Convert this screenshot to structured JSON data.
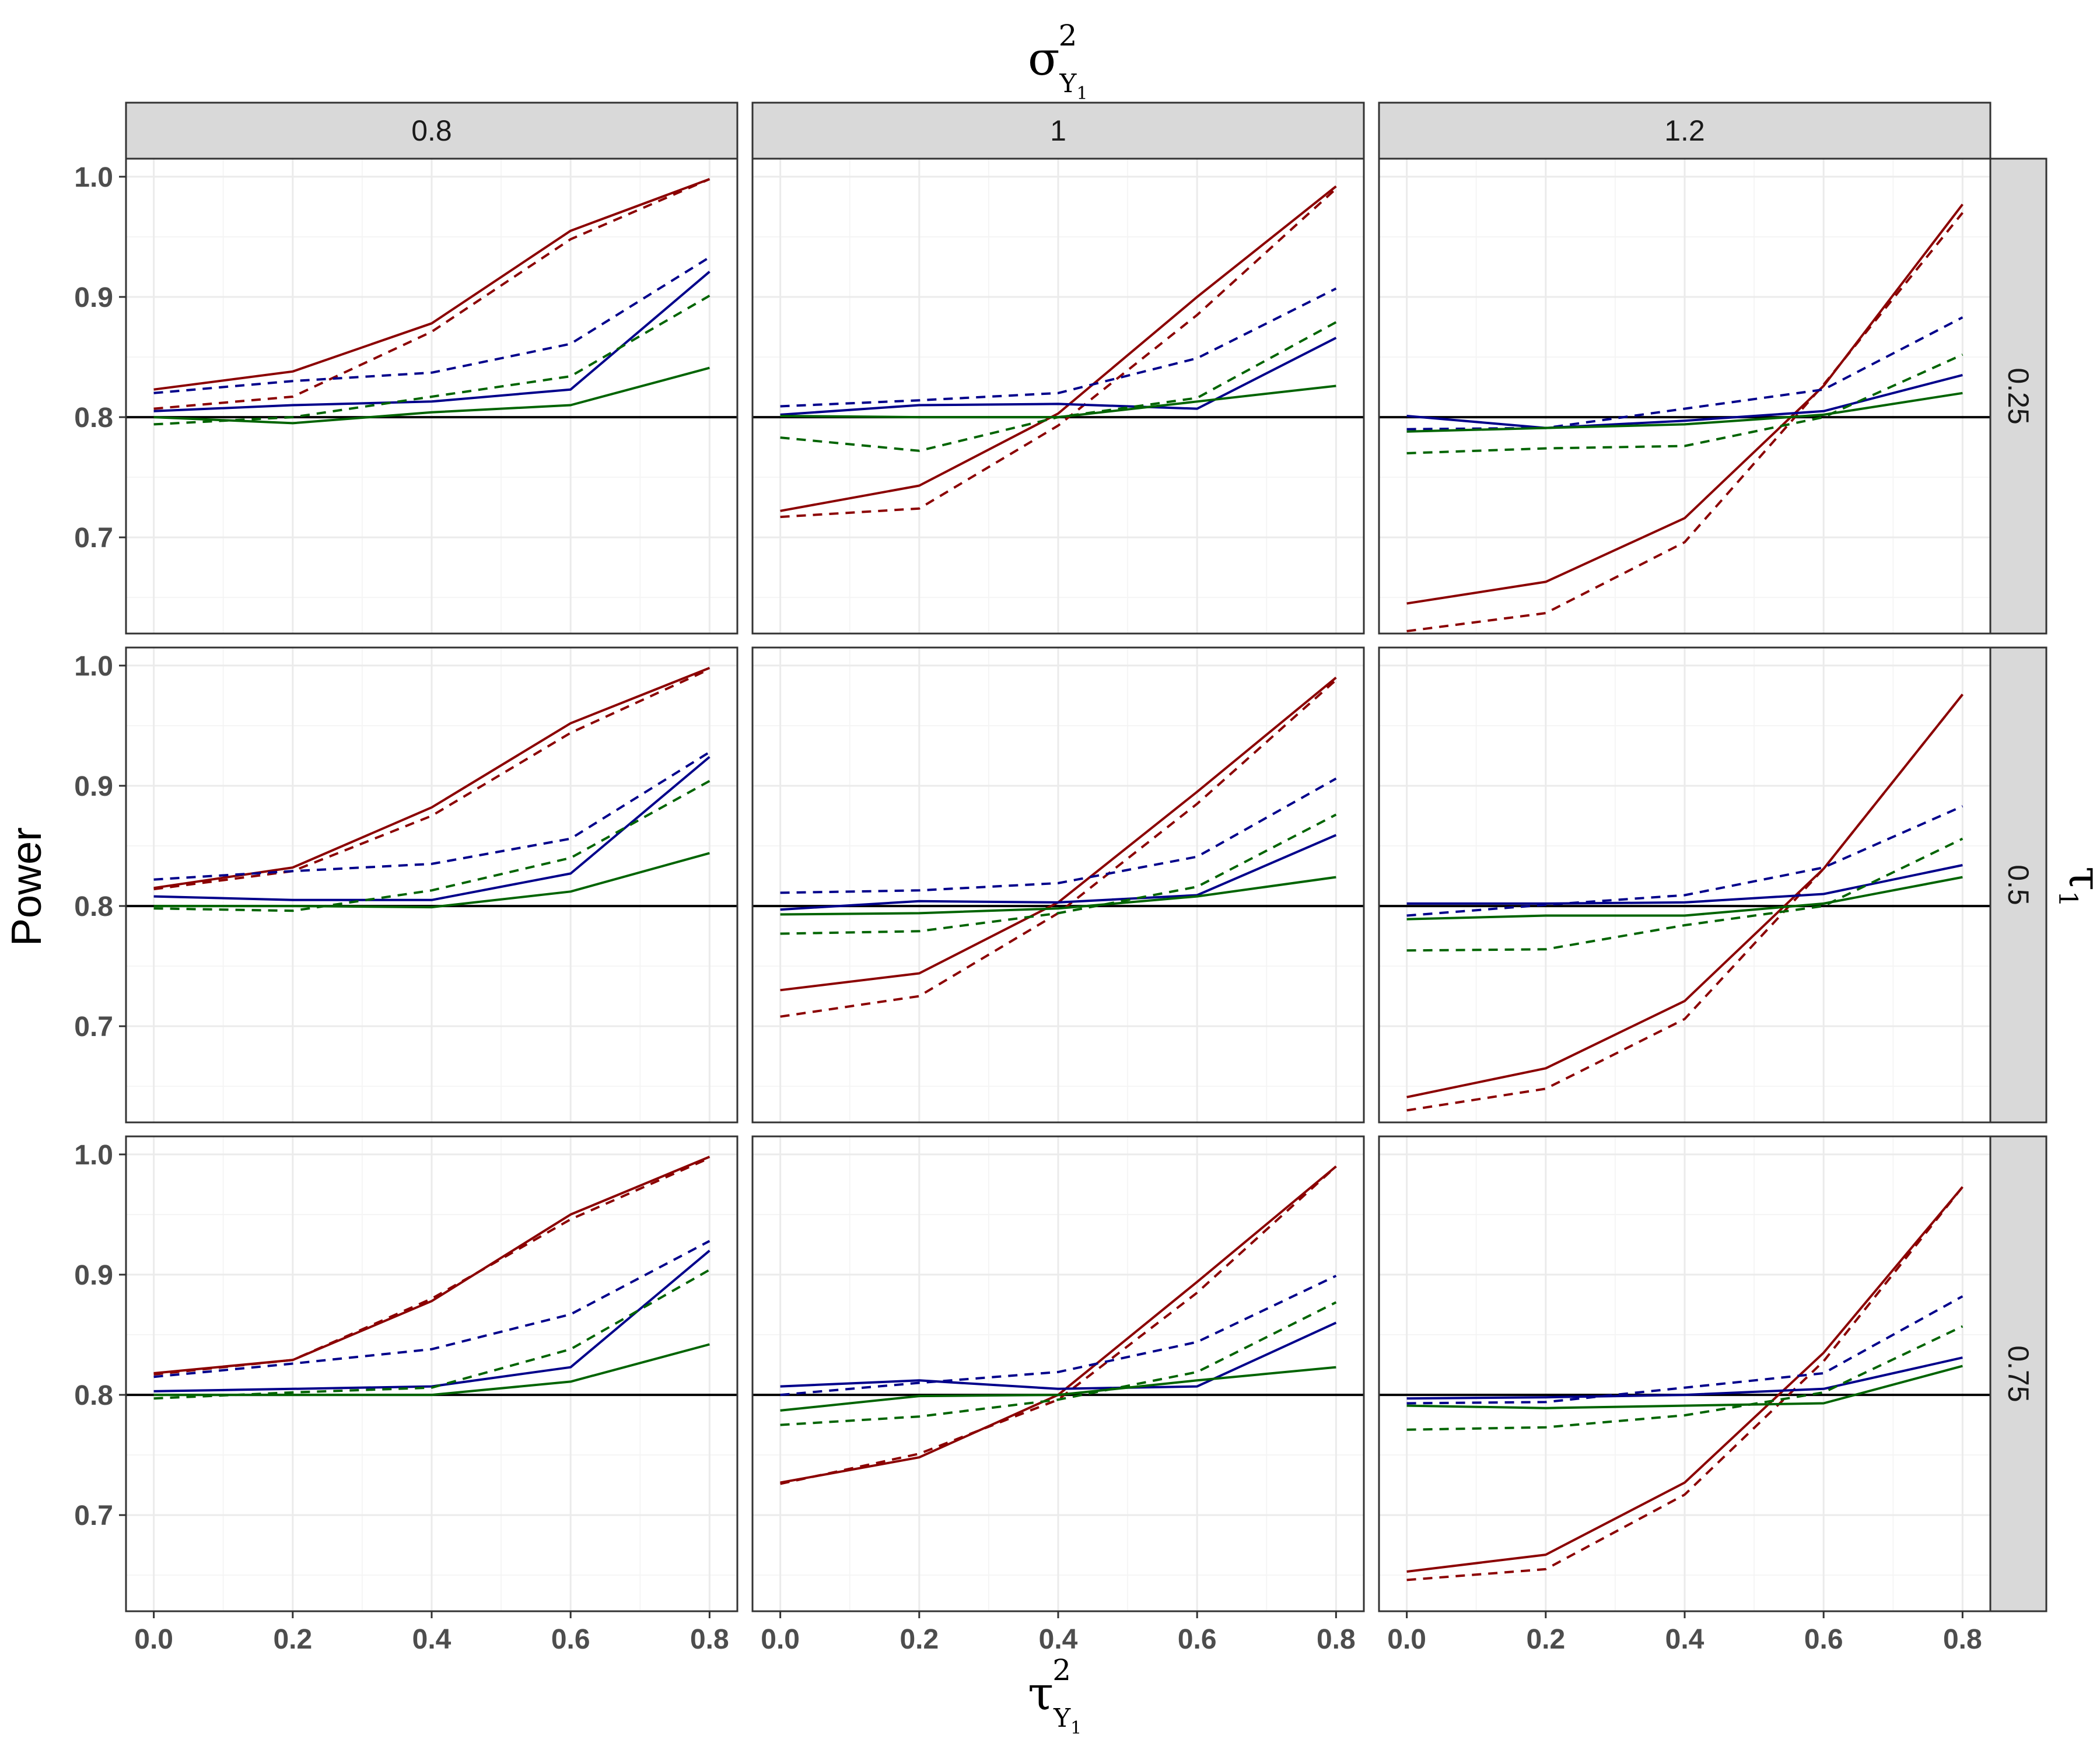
{
  "chart_data": {
    "type": "line",
    "facet_col_title": "σ",
    "facet_row_title": "τ",
    "xlabel_base": "τ",
    "ylabel": "Power",
    "col_title_sup": "2",
    "col_title_sub": "Y",
    "col_title_subsub": "1",
    "row_title_sub": "1",
    "xlabel_sup": "2",
    "xlabel_sub": "Y",
    "xlabel_subsub": "1",
    "col_levels": [
      "0.8",
      "1",
      "1.2"
    ],
    "row_levels": [
      "0.25",
      "0.5",
      "0.75"
    ],
    "x": [
      0.0,
      0.2,
      0.4,
      0.6,
      0.8
    ],
    "x_ticks": [
      "0.0",
      "0.2",
      "0.4",
      "0.6",
      "0.8"
    ],
    "y_ticks": [
      "0.7",
      "0.8",
      "0.9",
      "1.0"
    ],
    "xlim": [
      -0.04,
      0.84
    ],
    "ylim": [
      0.62,
      1.015
    ],
    "reference_line": 0.8,
    "grid": true,
    "legend": "none",
    "colors": {
      "red": "#8B0000",
      "blue": "#00008B",
      "green": "#006400",
      "reference": "#000000",
      "strip_fill": "#D9D9D9",
      "grid_major": "#EBEBEB",
      "grid_minor": "#F5F5F5"
    },
    "panels": [
      {
        "row": 0,
        "col": 0,
        "series": [
          {
            "color": "red",
            "dash": "solid",
            "values": [
              0.823,
              0.838,
              0.878,
              0.955,
              0.998
            ]
          },
          {
            "color": "red",
            "dash": "dashed",
            "values": [
              0.807,
              0.817,
              0.871,
              0.948,
              0.998
            ]
          },
          {
            "color": "blue",
            "dash": "dashed",
            "values": [
              0.82,
              0.83,
              0.837,
              0.861,
              0.933
            ]
          },
          {
            "color": "blue",
            "dash": "solid",
            "values": [
              0.805,
              0.81,
              0.813,
              0.823,
              0.921
            ]
          },
          {
            "color": "green",
            "dash": "dashed",
            "values": [
              0.794,
              0.8,
              0.817,
              0.834,
              0.901
            ]
          },
          {
            "color": "green",
            "dash": "solid",
            "values": [
              0.8,
              0.795,
              0.804,
              0.81,
              0.841
            ]
          }
        ]
      },
      {
        "row": 0,
        "col": 1,
        "series": [
          {
            "color": "red",
            "dash": "solid",
            "values": [
              0.722,
              0.743,
              0.803,
              0.9,
              0.992
            ]
          },
          {
            "color": "red",
            "dash": "dashed",
            "values": [
              0.717,
              0.724,
              0.793,
              0.885,
              0.99
            ]
          },
          {
            "color": "blue",
            "dash": "dashed",
            "values": [
              0.809,
              0.814,
              0.82,
              0.849,
              0.907
            ]
          },
          {
            "color": "blue",
            "dash": "solid",
            "values": [
              0.802,
              0.81,
              0.811,
              0.807,
              0.866
            ]
          },
          {
            "color": "green",
            "dash": "dashed",
            "values": [
              0.783,
              0.772,
              0.8,
              0.816,
              0.879
            ]
          },
          {
            "color": "green",
            "dash": "solid",
            "values": [
              0.801,
              0.8,
              0.8,
              0.813,
              0.826
            ]
          }
        ]
      },
      {
        "row": 0,
        "col": 2,
        "series": [
          {
            "color": "red",
            "dash": "solid",
            "values": [
              0.645,
              0.663,
              0.716,
              0.826,
              0.977
            ]
          },
          {
            "color": "red",
            "dash": "dashed",
            "values": [
              0.622,
              0.637,
              0.696,
              0.827,
              0.97
            ]
          },
          {
            "color": "blue",
            "dash": "dashed",
            "values": [
              0.79,
              0.791,
              0.807,
              0.823,
              0.883
            ]
          },
          {
            "color": "blue",
            "dash": "solid",
            "values": [
              0.801,
              0.791,
              0.797,
              0.805,
              0.835
            ]
          },
          {
            "color": "green",
            "dash": "dashed",
            "values": [
              0.77,
              0.774,
              0.776,
              0.8,
              0.852
            ]
          },
          {
            "color": "green",
            "dash": "solid",
            "values": [
              0.788,
              0.791,
              0.794,
              0.802,
              0.82
            ]
          }
        ]
      },
      {
        "row": 1,
        "col": 0,
        "series": [
          {
            "color": "red",
            "dash": "solid",
            "values": [
              0.815,
              0.832,
              0.882,
              0.952,
              0.998
            ]
          },
          {
            "color": "red",
            "dash": "dashed",
            "values": [
              0.814,
              0.829,
              0.875,
              0.944,
              0.997
            ]
          },
          {
            "color": "blue",
            "dash": "dashed",
            "values": [
              0.822,
              0.829,
              0.835,
              0.856,
              0.928
            ]
          },
          {
            "color": "blue",
            "dash": "solid",
            "values": [
              0.808,
              0.805,
              0.805,
              0.827,
              0.924
            ]
          },
          {
            "color": "green",
            "dash": "dashed",
            "values": [
              0.798,
              0.796,
              0.813,
              0.84,
              0.904
            ]
          },
          {
            "color": "green",
            "dash": "solid",
            "values": [
              0.8,
              0.8,
              0.799,
              0.812,
              0.844
            ]
          }
        ]
      },
      {
        "row": 1,
        "col": 1,
        "series": [
          {
            "color": "red",
            "dash": "solid",
            "values": [
              0.73,
              0.744,
              0.803,
              0.895,
              0.99
            ]
          },
          {
            "color": "red",
            "dash": "dashed",
            "values": [
              0.708,
              0.725,
              0.794,
              0.885,
              0.988
            ]
          },
          {
            "color": "blue",
            "dash": "dashed",
            "values": [
              0.811,
              0.813,
              0.819,
              0.841,
              0.906
            ]
          },
          {
            "color": "blue",
            "dash": "solid",
            "values": [
              0.797,
              0.804,
              0.803,
              0.809,
              0.859
            ]
          },
          {
            "color": "green",
            "dash": "dashed",
            "values": [
              0.777,
              0.779,
              0.794,
              0.816,
              0.876
            ]
          },
          {
            "color": "green",
            "dash": "solid",
            "values": [
              0.793,
              0.794,
              0.798,
              0.808,
              0.824
            ]
          }
        ]
      },
      {
        "row": 1,
        "col": 2,
        "series": [
          {
            "color": "red",
            "dash": "solid",
            "values": [
              0.641,
              0.665,
              0.721,
              0.831,
              0.976
            ]
          },
          {
            "color": "red",
            "dash": "dashed",
            "values": [
              0.63,
              0.648,
              0.706,
              0.831,
              0.976
            ]
          },
          {
            "color": "blue",
            "dash": "dashed",
            "values": [
              0.792,
              0.801,
              0.809,
              0.832,
              0.883
            ]
          },
          {
            "color": "blue",
            "dash": "solid",
            "values": [
              0.802,
              0.802,
              0.803,
              0.81,
              0.834
            ]
          },
          {
            "color": "green",
            "dash": "dashed",
            "values": [
              0.763,
              0.764,
              0.784,
              0.8,
              0.856
            ]
          },
          {
            "color": "green",
            "dash": "solid",
            "values": [
              0.789,
              0.792,
              0.792,
              0.802,
              0.824
            ]
          }
        ]
      },
      {
        "row": 2,
        "col": 0,
        "series": [
          {
            "color": "red",
            "dash": "solid",
            "values": [
              0.818,
              0.829,
              0.878,
              0.95,
              0.998
            ]
          },
          {
            "color": "red",
            "dash": "dashed",
            "values": [
              0.817,
              0.829,
              0.88,
              0.946,
              0.997
            ]
          },
          {
            "color": "blue",
            "dash": "dashed",
            "values": [
              0.815,
              0.826,
              0.838,
              0.867,
              0.928
            ]
          },
          {
            "color": "blue",
            "dash": "solid",
            "values": [
              0.803,
              0.805,
              0.807,
              0.823,
              0.92
            ]
          },
          {
            "color": "green",
            "dash": "dashed",
            "values": [
              0.797,
              0.802,
              0.806,
              0.838,
              0.904
            ]
          },
          {
            "color": "green",
            "dash": "solid",
            "values": [
              0.8,
              0.8,
              0.8,
              0.811,
              0.842
            ]
          }
        ]
      },
      {
        "row": 2,
        "col": 1,
        "series": [
          {
            "color": "red",
            "dash": "solid",
            "values": [
              0.727,
              0.748,
              0.8,
              0.894,
              0.99
            ]
          },
          {
            "color": "red",
            "dash": "dashed",
            "values": [
              0.726,
              0.751,
              0.796,
              0.885,
              0.99
            ]
          },
          {
            "color": "blue",
            "dash": "dashed",
            "values": [
              0.8,
              0.81,
              0.819,
              0.844,
              0.899
            ]
          },
          {
            "color": "blue",
            "dash": "solid",
            "values": [
              0.807,
              0.812,
              0.805,
              0.807,
              0.86
            ]
          },
          {
            "color": "green",
            "dash": "dashed",
            "values": [
              0.775,
              0.782,
              0.796,
              0.819,
              0.877
            ]
          },
          {
            "color": "green",
            "dash": "solid",
            "values": [
              0.787,
              0.799,
              0.8,
              0.812,
              0.823
            ]
          }
        ]
      },
      {
        "row": 2,
        "col": 2,
        "series": [
          {
            "color": "red",
            "dash": "solid",
            "values": [
              0.653,
              0.667,
              0.727,
              0.835,
              0.973
            ]
          },
          {
            "color": "red",
            "dash": "dashed",
            "values": [
              0.646,
              0.655,
              0.717,
              0.828,
              0.973
            ]
          },
          {
            "color": "blue",
            "dash": "dashed",
            "values": [
              0.793,
              0.794,
              0.806,
              0.818,
              0.882
            ]
          },
          {
            "color": "blue",
            "dash": "solid",
            "values": [
              0.797,
              0.798,
              0.8,
              0.805,
              0.831
            ]
          },
          {
            "color": "green",
            "dash": "dashed",
            "values": [
              0.771,
              0.773,
              0.783,
              0.802,
              0.857
            ]
          },
          {
            "color": "green",
            "dash": "solid",
            "values": [
              0.791,
              0.789,
              0.791,
              0.793,
              0.824
            ]
          }
        ]
      }
    ]
  }
}
